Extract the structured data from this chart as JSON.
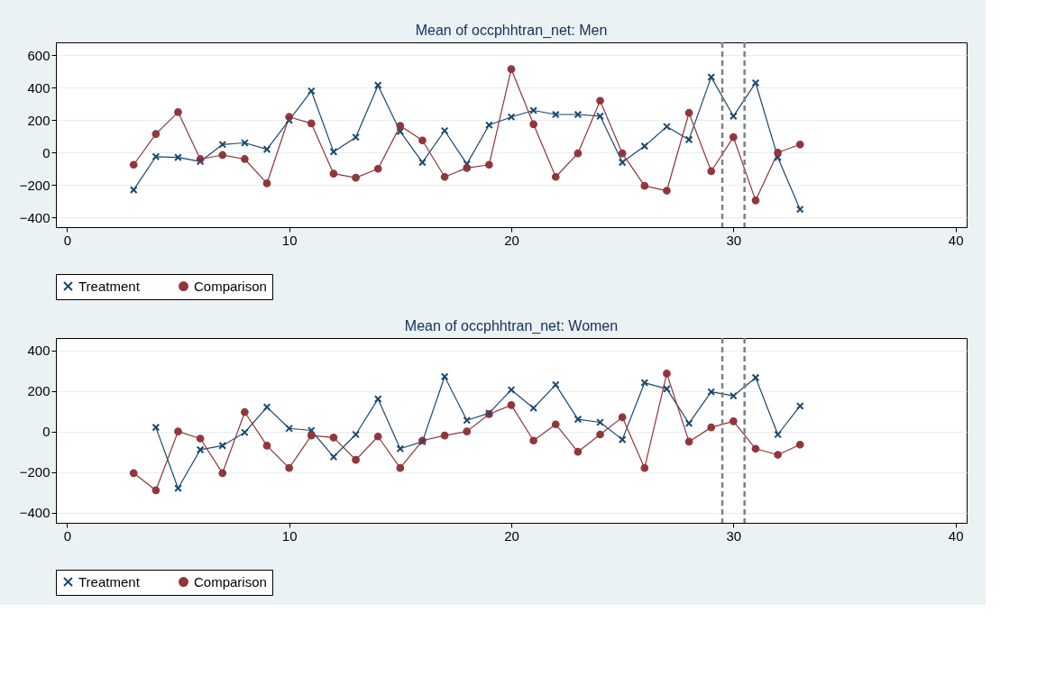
{
  "chart_data": [
    {
      "type": "line",
      "title": "Mean of occphhtran_net: Men",
      "xlim": [
        -0.5,
        40.5
      ],
      "xticks": [
        0,
        10,
        20,
        30,
        40
      ],
      "ylim": [
        -460,
        680
      ],
      "yticks": [
        -400,
        -200,
        0,
        200,
        400,
        600
      ],
      "grid": "y",
      "legend": "bottom",
      "line_style": "solid",
      "ref_lines": [
        {
          "axis": "x",
          "value": 29.5,
          "color": "#808080",
          "line_style": "dashed"
        },
        {
          "axis": "x",
          "value": 30.5,
          "color": "#808080",
          "line_style": "dashed"
        }
      ],
      "series": [
        {
          "name": "Treatment",
          "color": "#1a476f",
          "marker": "cross",
          "x": [
            3,
            4,
            5,
            6,
            7,
            8,
            9,
            10,
            11,
            12,
            13,
            14,
            15,
            16,
            17,
            18,
            19,
            20,
            21,
            22,
            23,
            24,
            25,
            26,
            27,
            28,
            29,
            30,
            31,
            32,
            33
          ],
          "values": [
            -230,
            -25,
            -30,
            -55,
            50,
            60,
            20,
            200,
            380,
            5,
            95,
            415,
            130,
            -60,
            135,
            -70,
            170,
            220,
            260,
            235,
            235,
            225,
            -60,
            40,
            160,
            80,
            465,
            225,
            430,
            -30,
            -350
          ]
        },
        {
          "name": "Comparison",
          "color": "#90353b",
          "marker": "circle",
          "x": [
            3,
            4,
            5,
            6,
            7,
            8,
            9,
            10,
            11,
            12,
            13,
            14,
            15,
            16,
            17,
            18,
            19,
            20,
            21,
            22,
            23,
            24,
            25,
            26,
            27,
            28,
            29,
            30,
            31,
            32,
            33
          ],
          "values": [
            -75,
            115,
            250,
            -40,
            -15,
            -40,
            -190,
            220,
            180,
            -130,
            -155,
            -100,
            165,
            75,
            -150,
            -95,
            -75,
            515,
            175,
            -150,
            -5,
            320,
            -5,
            -205,
            -235,
            245,
            -115,
            95,
            -295,
            0,
            50
          ]
        }
      ]
    },
    {
      "type": "line",
      "title": "Mean of occphhtran_net: Women",
      "xlim": [
        -0.5,
        40.5
      ],
      "xticks": [
        0,
        10,
        20,
        30,
        40
      ],
      "ylim": [
        -450,
        460
      ],
      "yticks": [
        -400,
        -200,
        0,
        200,
        400
      ],
      "grid": "y",
      "legend": "bottom",
      "line_style": "solid",
      "ref_lines": [
        {
          "axis": "x",
          "value": 29.5,
          "color": "#808080",
          "line_style": "dashed"
        },
        {
          "axis": "x",
          "value": 30.5,
          "color": "#808080",
          "line_style": "dashed"
        }
      ],
      "series": [
        {
          "name": "Treatment",
          "color": "#1a476f",
          "marker": "cross",
          "x": [
            4,
            5,
            6,
            7,
            8,
            9,
            10,
            11,
            12,
            13,
            14,
            15,
            16,
            17,
            18,
            19,
            20,
            21,
            22,
            23,
            24,
            25,
            26,
            27,
            28,
            29,
            30,
            31,
            32,
            33
          ],
          "values": [
            20,
            -280,
            -90,
            -70,
            -5,
            120,
            15,
            5,
            -125,
            -15,
            160,
            -85,
            -50,
            270,
            55,
            90,
            205,
            115,
            230,
            60,
            45,
            -40,
            240,
            210,
            40,
            195,
            175,
            265,
            -15,
            125
          ]
        },
        {
          "name": "Comparison",
          "color": "#90353b",
          "marker": "circle",
          "x": [
            3,
            4,
            5,
            6,
            7,
            8,
            9,
            10,
            11,
            12,
            13,
            14,
            15,
            16,
            17,
            18,
            19,
            20,
            21,
            22,
            23,
            24,
            25,
            26,
            27,
            28,
            29,
            30,
            31,
            32,
            33
          ],
          "values": [
            -205,
            -290,
            0,
            -35,
            -205,
            95,
            -70,
            -180,
            -20,
            -30,
            -140,
            -25,
            -180,
            -45,
            -20,
            0,
            85,
            130,
            -45,
            35,
            -100,
            -15,
            70,
            -180,
            285,
            -50,
            20,
            50,
            -85,
            -115,
            -65
          ]
        }
      ]
    }
  ]
}
